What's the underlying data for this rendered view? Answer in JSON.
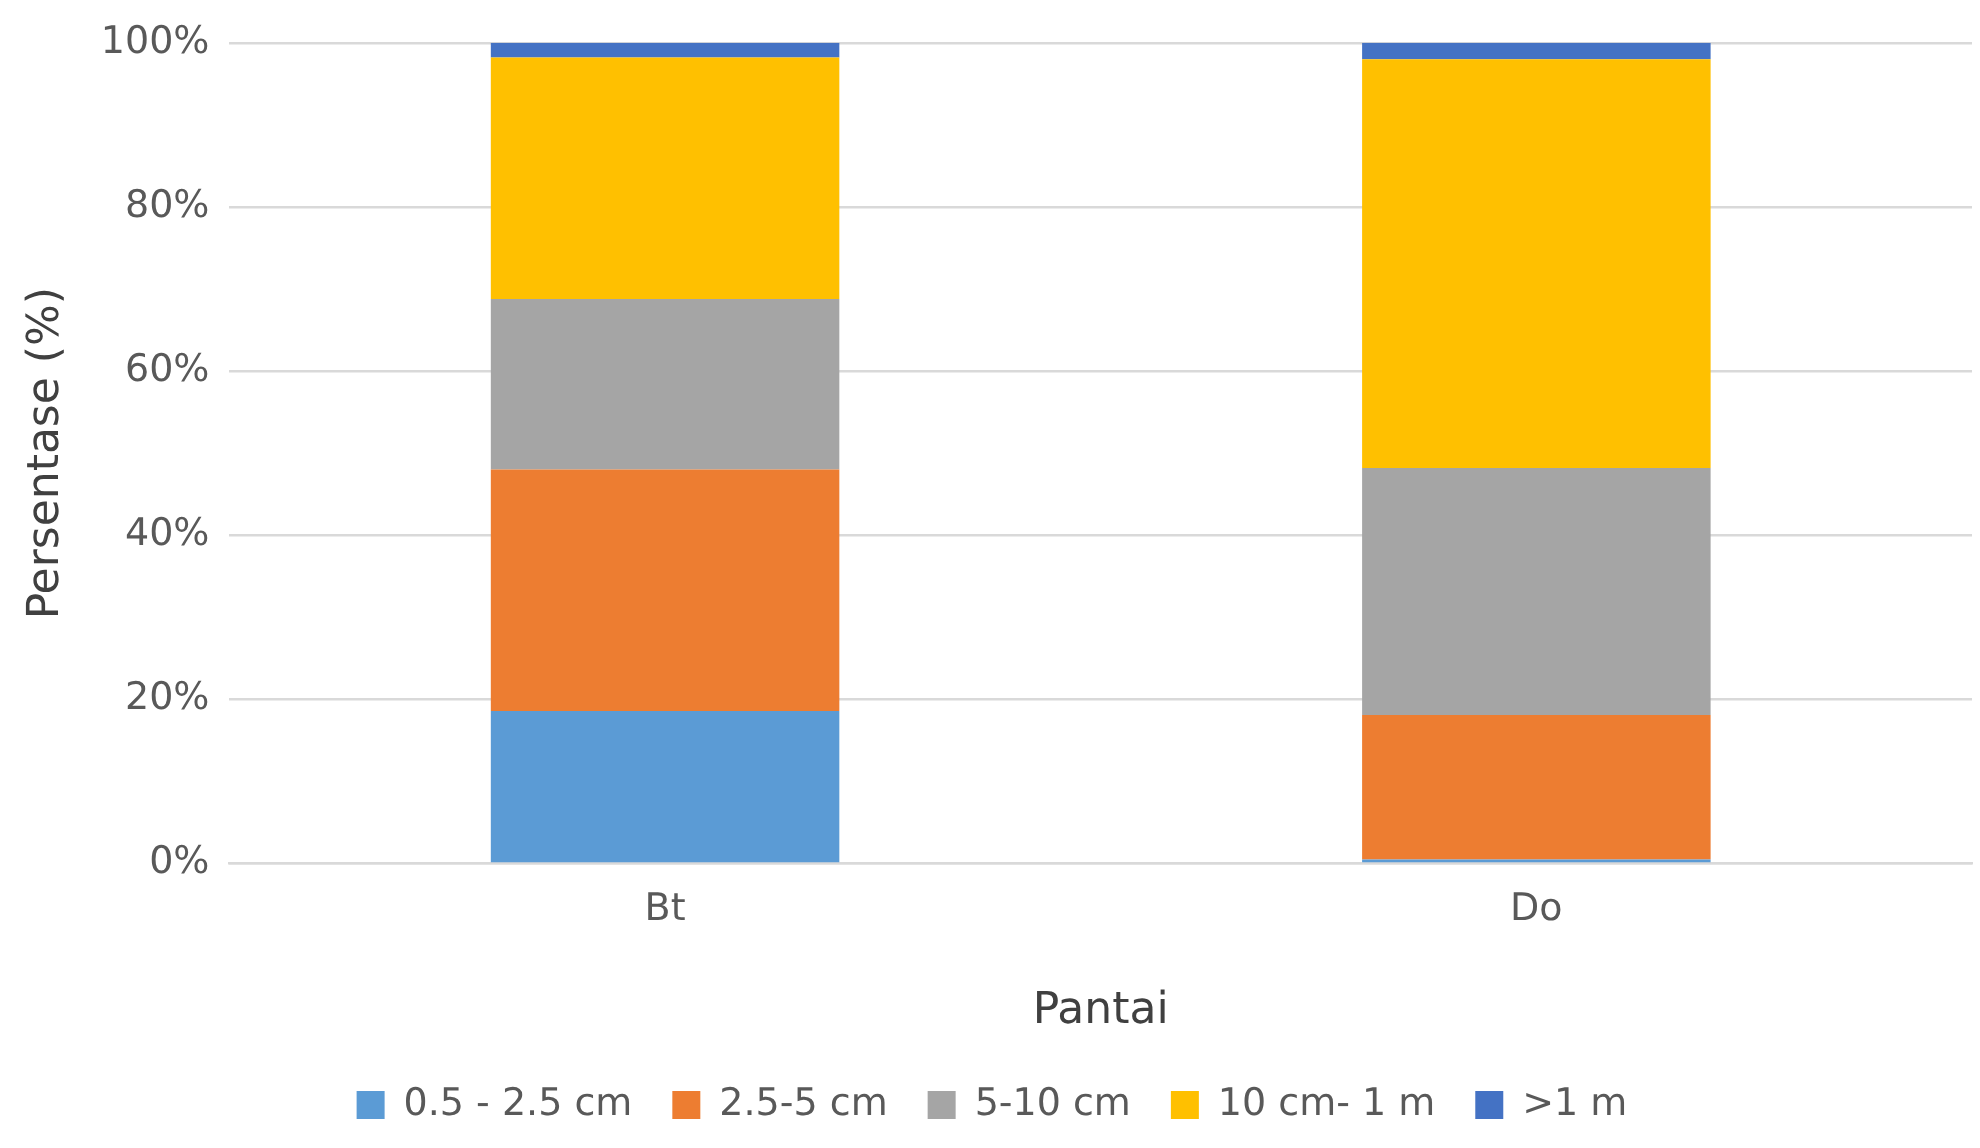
{
  "chart_data": {
    "type": "bar",
    "stacked": true,
    "xlabel": "Pantai",
    "ylabel": "Persentase (%)",
    "categories": [
      "Bt",
      "Do"
    ],
    "series": [
      {
        "name": "0.5 - 2.5 cm",
        "color": "#5b9bd5",
        "values": [
          18.6,
          0.5
        ]
      },
      {
        "name": "2.5-5 cm",
        "color": "#ed7d31",
        "values": [
          29.4,
          17.6
        ]
      },
      {
        "name": "5-10 cm",
        "color": "#a5a5a5",
        "values": [
          20.8,
          30.1
        ]
      },
      {
        "name": "10 cm- 1 m",
        "color": "#ffc000",
        "values": [
          29.4,
          49.8
        ]
      },
      {
        "name": ">1 m",
        "color": "#4472c4",
        "values": [
          1.8,
          2.0
        ]
      }
    ],
    "ylim": [
      0,
      100
    ],
    "yticks": [
      {
        "value": 0,
        "label": "0%"
      },
      {
        "value": 20,
        "label": "20%"
      },
      {
        "value": 40,
        "label": "40%"
      },
      {
        "value": 60,
        "label": "60%"
      },
      {
        "value": 80,
        "label": "80%"
      },
      {
        "value": 100,
        "label": "100%"
      }
    ],
    "grid": "y",
    "legend": "bottom"
  }
}
